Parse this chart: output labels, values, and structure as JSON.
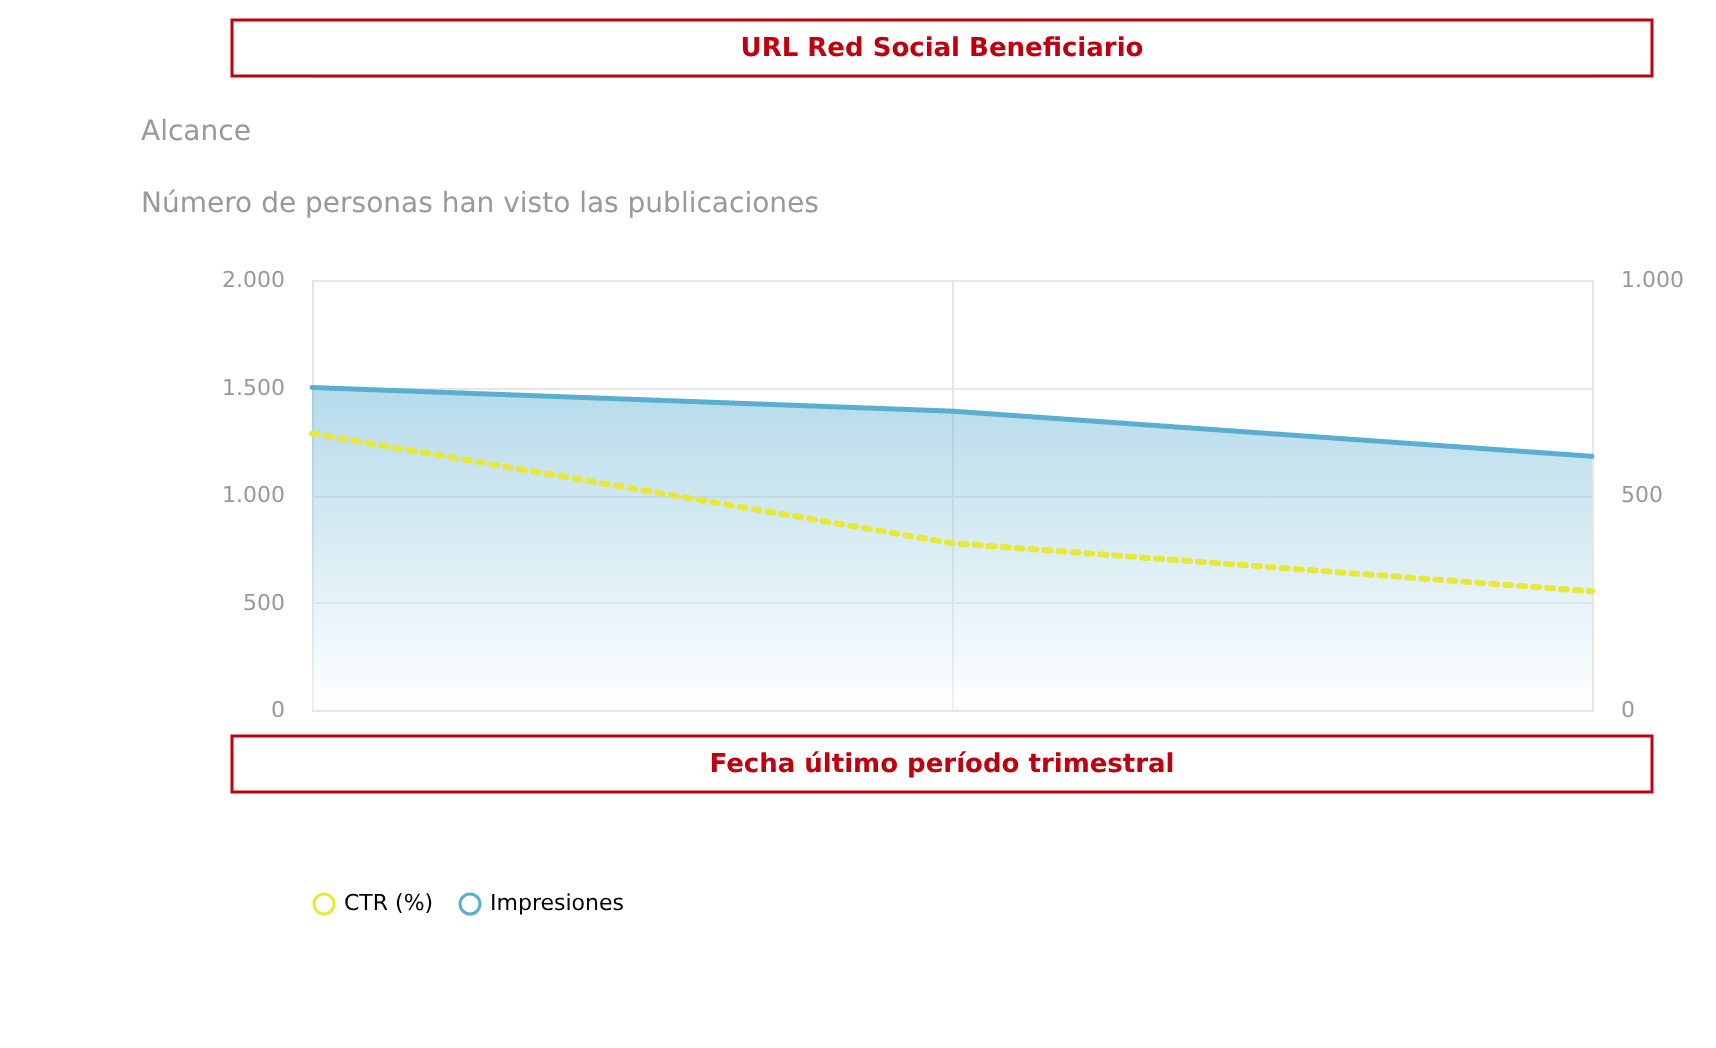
{
  "chart_data": {
    "type": "line",
    "title": "Alcance",
    "subtitle": "Número de personas han visto las publicaciones",
    "annotations": [
      "URL Red Social Beneficiario",
      "Fecha último período trimestral"
    ],
    "categories": [
      null,
      null,
      null
    ],
    "series": [
      {
        "name": "CTR (%)",
        "color": "#e8e83a",
        "axis": "y2",
        "line_style": "dotted",
        "values": [
          643,
          388,
          276
        ]
      },
      {
        "name": "Impresiones",
        "color": "#5aaed0",
        "type": "area",
        "values": [
          1500,
          1390,
          1180
        ]
      }
    ],
    "ylim": [
      0,
      2000
    ],
    "yticks": [
      {
        "value": 0,
        "label": "0"
      },
      {
        "value": 500,
        "label": "500"
      },
      {
        "value": 1000,
        "label": "1.000"
      },
      {
        "value": 1500,
        "label": "1.500"
      },
      {
        "value": 2000,
        "label": "2.000"
      }
    ],
    "y2lim": [
      0,
      1000
    ],
    "y2ticks": [
      {
        "value": 0,
        "label": "0"
      },
      {
        "value": 500,
        "label": "500"
      },
      {
        "value": 1000,
        "label": "1.000"
      }
    ],
    "grid": true,
    "legend": "bottom",
    "tick_labels": "y"
  }
}
